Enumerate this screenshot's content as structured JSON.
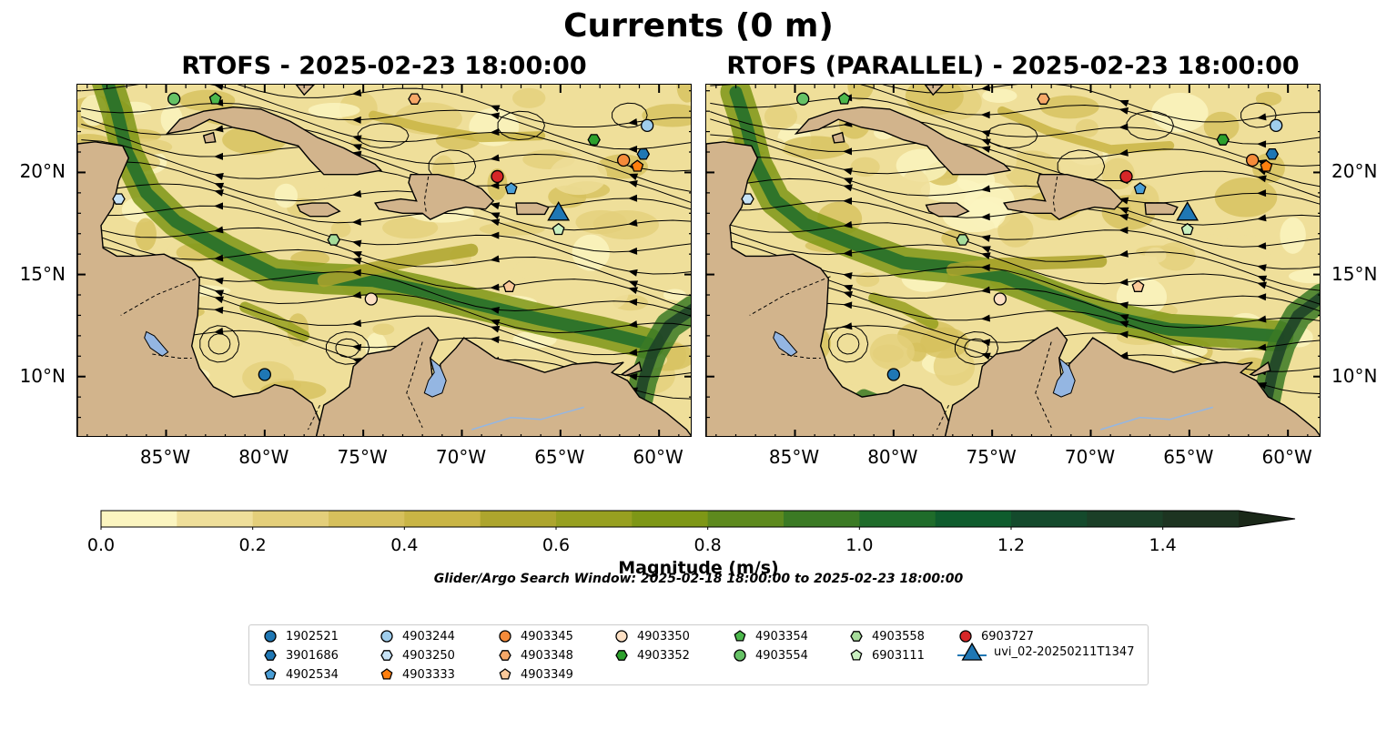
{
  "title": "Currents (0 m)",
  "panels": [
    {
      "title": "RTOFS - 2025-02-23 18:00:00"
    },
    {
      "title": "RTOFS (PARALLEL) - 2025-02-23 18:00:00"
    }
  ],
  "map": {
    "lon_range": [
      -89.5,
      -58.3
    ],
    "lat_range": [
      7.0,
      24.3
    ],
    "lon_ticks": [
      "85°W",
      "80°W",
      "75°W",
      "70°W",
      "65°W",
      "60°W"
    ],
    "lon_tick_values": [
      -85,
      -80,
      -75,
      -70,
      -65,
      -60
    ],
    "lat_ticks": [
      "20°N",
      "15°N",
      "10°N"
    ],
    "lat_tick_values": [
      20,
      15,
      10
    ],
    "land_color": "#d2b48c",
    "lake_color": "#94b6e2"
  },
  "colorbar": {
    "title": "Magnitude (m/s)",
    "tick_labels": [
      "0.0",
      "0.2",
      "0.4",
      "0.6",
      "0.8",
      "1.0",
      "1.2",
      "1.4"
    ],
    "tick_values": [
      0,
      0.2,
      0.4,
      0.6,
      0.8,
      1.0,
      1.2,
      1.4
    ],
    "range": [
      0,
      1.5
    ],
    "extend": "max",
    "colors": [
      "#fbf5c0",
      "#efdf9a",
      "#e4cf7a",
      "#d6c05c",
      "#c9b545",
      "#ada52d",
      "#97a020",
      "#7e9716",
      "#5e8a1e",
      "#3b7a24",
      "#1f6c2a",
      "#0f5c2d",
      "#144a2c",
      "#1b3f27",
      "#1d3421",
      "#1a2818"
    ]
  },
  "search_window": "Glider/Argo Search Window: 2025-02-18 18:00:00 to 2025-02-23 18:00:00",
  "legend": [
    {
      "label": "1902521",
      "marker": "circle",
      "color": "#1f77b4"
    },
    {
      "label": "3901686",
      "marker": "hexagon",
      "color": "#1f77b4"
    },
    {
      "label": "4902534",
      "marker": "pentagon",
      "color": "#4a9ed6"
    },
    {
      "label": "4903244",
      "marker": "circle",
      "color": "#9fcdec"
    },
    {
      "label": "4903250",
      "marker": "hexagon",
      "color": "#c6e2f5"
    },
    {
      "label": "4903333",
      "marker": "pentagon",
      "color": "#ff7f0e"
    },
    {
      "label": "4903345",
      "marker": "circle",
      "color": "#f58b3a"
    },
    {
      "label": "4903348",
      "marker": "hexagon",
      "color": "#f7a868"
    },
    {
      "label": "4903349",
      "marker": "pentagon",
      "color": "#fbc99a"
    },
    {
      "label": "4903350",
      "marker": "circle",
      "color": "#fde0c4"
    },
    {
      "label": "4903352",
      "marker": "hexagon",
      "color": "#2ca02c"
    },
    {
      "label": "4903354",
      "marker": "pentagon",
      "color": "#4cb84c"
    },
    {
      "label": "4903554",
      "marker": "circle",
      "color": "#66c266"
    },
    {
      "label": "4903558",
      "marker": "hexagon",
      "color": "#a6dc9a"
    },
    {
      "label": "6903111",
      "marker": "pentagon",
      "color": "#c9efc0"
    },
    {
      "label": "6903727",
      "marker": "circle",
      "color": "#d62728"
    },
    {
      "label": "uvi_02-20250211T1347",
      "marker": "triangle",
      "color": "#1f77b4"
    }
  ],
  "observations": {
    "panel1": [
      {
        "id": "1902521",
        "lon": -80.0,
        "lat": 10.1
      },
      {
        "id": "4903350",
        "lon": -74.6,
        "lat": 13.8
      },
      {
        "id": "4903349",
        "lon": -67.6,
        "lat": 14.4
      },
      {
        "id": "4903558",
        "lon": -76.5,
        "lat": 16.7
      },
      {
        "id": "4903250",
        "lon": -87.4,
        "lat": 18.7
      },
      {
        "id": "6903727",
        "lon": -68.2,
        "lat": 19.8
      },
      {
        "id": "4902534",
        "lon": -67.5,
        "lat": 19.2
      },
      {
        "id": "uvi_02-20250211T1347",
        "lon": -65.1,
        "lat": 18.1
      },
      {
        "id": "6903111",
        "lon": -65.1,
        "lat": 17.2
      },
      {
        "id": "4903345",
        "lon": -61.8,
        "lat": 20.6
      },
      {
        "id": "4903333",
        "lon": -61.1,
        "lat": 20.3
      },
      {
        "id": "3901686",
        "lon": -60.8,
        "lat": 20.9
      },
      {
        "id": "4903244",
        "lon": -60.6,
        "lat": 22.3
      },
      {
        "id": "4903352",
        "lon": -63.3,
        "lat": 21.6
      },
      {
        "id": "4903554",
        "lon": -84.6,
        "lat": 23.6
      },
      {
        "id": "4903354",
        "lon": -82.5,
        "lat": 23.6
      },
      {
        "id": "4903348",
        "lon": -72.4,
        "lat": 23.6
      }
    ],
    "panel2": [
      {
        "id": "1902521",
        "lon": -80.0,
        "lat": 10.1
      },
      {
        "id": "4903350",
        "lon": -74.6,
        "lat": 13.8
      },
      {
        "id": "4903349",
        "lon": -67.6,
        "lat": 14.4
      },
      {
        "id": "4903558",
        "lon": -76.5,
        "lat": 16.7
      },
      {
        "id": "4903250",
        "lon": -87.4,
        "lat": 18.7
      },
      {
        "id": "6903727",
        "lon": -68.2,
        "lat": 19.8
      },
      {
        "id": "4902534",
        "lon": -67.5,
        "lat": 19.2
      },
      {
        "id": "uvi_02-20250211T1347",
        "lon": -65.1,
        "lat": 18.1
      },
      {
        "id": "6903111",
        "lon": -65.1,
        "lat": 17.2
      },
      {
        "id": "4903345",
        "lon": -61.8,
        "lat": 20.6
      },
      {
        "id": "4903333",
        "lon": -61.1,
        "lat": 20.3
      },
      {
        "id": "3901686",
        "lon": -60.8,
        "lat": 20.9
      },
      {
        "id": "4903244",
        "lon": -60.6,
        "lat": 22.3
      },
      {
        "id": "4903352",
        "lon": -63.3,
        "lat": 21.6
      },
      {
        "id": "4903554",
        "lon": -84.6,
        "lat": 23.6
      },
      {
        "id": "4903354",
        "lon": -82.5,
        "lat": 23.6
      },
      {
        "id": "4903348",
        "lon": -72.4,
        "lat": 23.6
      }
    ]
  }
}
